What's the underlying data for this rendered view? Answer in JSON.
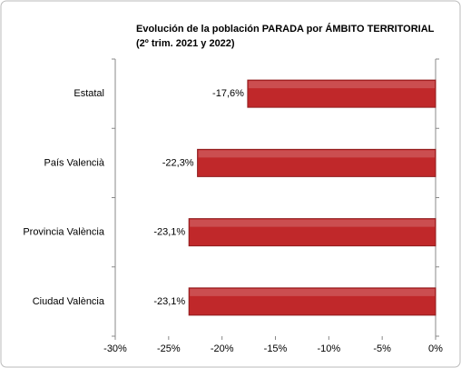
{
  "chart_data": {
    "type": "hbar",
    "title": "Evolución de la población PARADA por ÁMBITO TERRITORIAL",
    "subtitle": "(2º trim. 2021 y 2022)",
    "categories": [
      "Estatal",
      "País Valencià",
      "Provincia València",
      "Ciudad València"
    ],
    "values": [
      -17.6,
      -22.3,
      -23.1,
      -23.1
    ],
    "value_labels": [
      "-17,6%",
      "-22,3%",
      "-23,1%",
      "-23,1%"
    ],
    "color": "#c0282a",
    "xlim": [
      -30,
      0
    ],
    "xticks": [
      {
        "value": -30,
        "label": "-30%"
      },
      {
        "value": -25,
        "label": "-25%"
      },
      {
        "value": -20,
        "label": "-20%"
      },
      {
        "value": -15,
        "label": "-15%"
      },
      {
        "value": -10,
        "label": "-10%"
      },
      {
        "value": -5,
        "label": "-5%"
      },
      {
        "value": 0,
        "label": "0%"
      }
    ]
  }
}
